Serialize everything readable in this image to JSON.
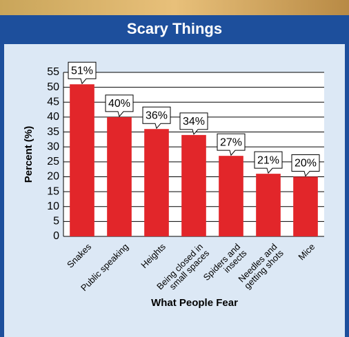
{
  "chart_data": {
    "type": "bar",
    "title": "Scary Things",
    "x_label": "What People Fear",
    "y_label": "Percent (%)",
    "categories": [
      "Snakes",
      "Public speaking",
      "Heights",
      "Being closed in\nsmall spaces",
      "Spiders and\ninsects",
      "Needles and\ngetting shots",
      "Mice"
    ],
    "values": [
      51,
      40,
      36,
      34,
      27,
      21,
      20
    ],
    "value_labels": [
      "51%",
      "40%",
      "36%",
      "34%",
      "27%",
      "21%",
      "20%"
    ],
    "color": "#e2262a",
    "ylim": [
      0,
      55
    ],
    "yticks": [
      0,
      5,
      10,
      15,
      20,
      25,
      30,
      35,
      40,
      45,
      50,
      55
    ],
    "grid": true
  }
}
